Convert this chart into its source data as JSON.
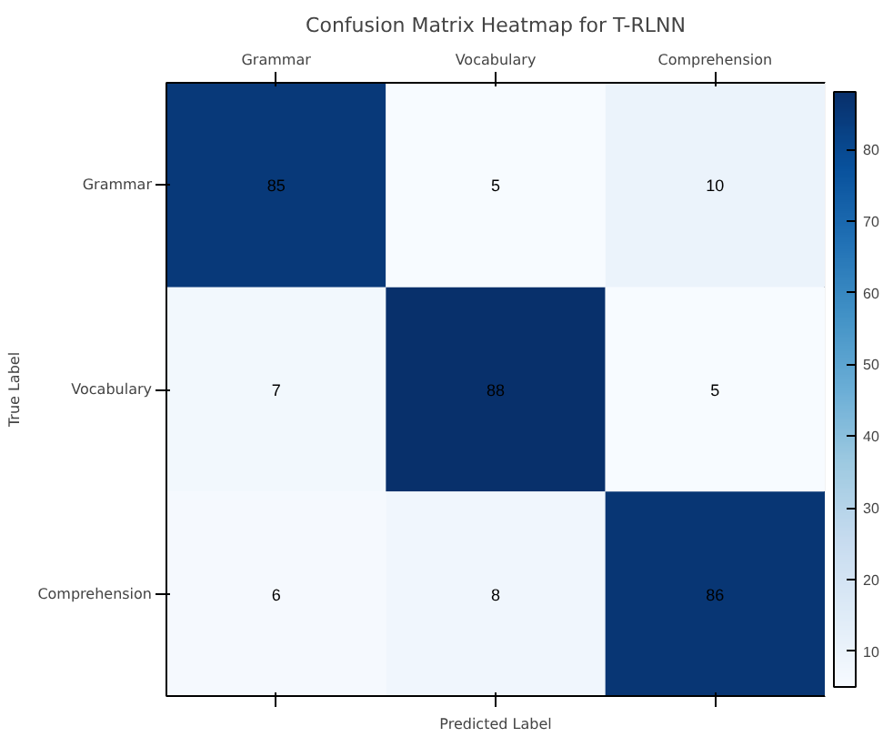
{
  "chart_data": {
    "type": "heatmap",
    "title": "Confusion Matrix Heatmap for T-RLNN",
    "xlabel": "Predicted Label",
    "ylabel": "True Label",
    "categories": [
      "Grammar",
      "Vocabulary",
      "Comprehension"
    ],
    "y_categories": [
      "Grammar",
      "Vocabulary",
      "Comprehension"
    ],
    "cells": [
      [
        85,
        5,
        10
      ],
      [
        7,
        88,
        5
      ],
      [
        6,
        8,
        86
      ]
    ],
    "data_labels": true,
    "clim": [
      5,
      88
    ],
    "cticks": [
      10,
      20,
      30,
      40,
      50,
      60,
      70,
      80
    ]
  }
}
